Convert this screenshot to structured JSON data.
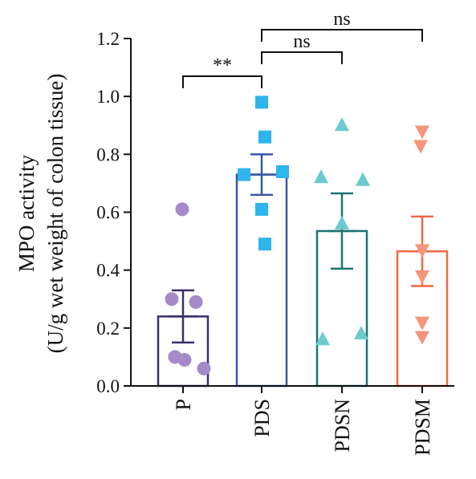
{
  "chart_data": {
    "type": "bar",
    "title": "",
    "xlabel": "",
    "ylabel_line1": "MPO activity",
    "ylabel_line2": "(U/g wet weight of colon tissue)",
    "ylim": [
      0,
      1.2
    ],
    "y_ticks": [
      "0.0",
      "0.2",
      "0.4",
      "0.6",
      "0.8",
      "1.0",
      "1.2"
    ],
    "grid": false,
    "legend": "none",
    "categories": [
      "P",
      "PDS",
      "PDSN",
      "PDSM"
    ],
    "means": [
      0.24,
      0.73,
      0.535,
      0.465
    ],
    "sem": [
      0.09,
      0.07,
      0.13,
      0.12
    ],
    "points": [
      [
        0.61,
        0.3,
        0.29,
        0.1,
        0.09,
        0.06
      ],
      [
        0.98,
        0.86,
        0.73,
        0.74,
        0.61,
        0.49
      ],
      [
        0.9,
        0.72,
        0.71,
        0.56,
        0.16,
        0.18
      ],
      [
        0.88,
        0.83,
        0.47,
        0.38,
        0.22,
        0.17
      ]
    ],
    "markers": [
      "circle",
      "square",
      "triangle-up",
      "triangle-down"
    ],
    "colors": {
      "bar_edges": [
        "#3b2f6b",
        "#3a57a6",
        "#1e7470",
        "#ee6a44"
      ],
      "points": [
        "#a48ac8",
        "#2db5ec",
        "#6ccbce",
        "#f5957a"
      ]
    },
    "significance": [
      {
        "from": 0,
        "to": 1,
        "label": "**"
      },
      {
        "from": 1,
        "to": 2,
        "label": "ns"
      },
      {
        "from": 1,
        "to": 3,
        "label": "ns"
      }
    ]
  }
}
